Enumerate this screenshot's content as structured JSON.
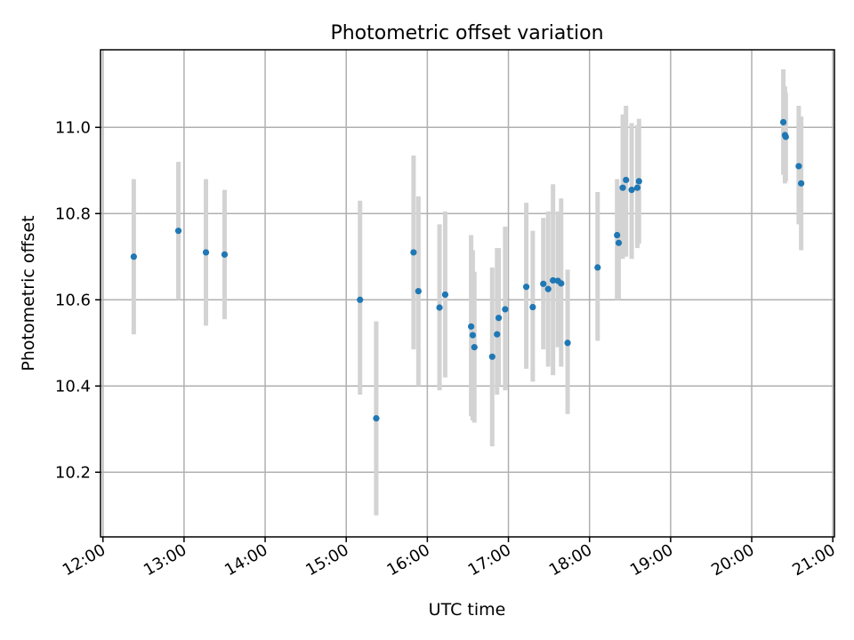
{
  "chart_data": {
    "type": "scatter",
    "title": "Photometric offset variation",
    "xlabel": "UTC time",
    "ylabel": "Photometric offset",
    "x_unit": "hours UTC",
    "xlim": [
      11.97,
      21.02
    ],
    "ylim": [
      10.05,
      11.18
    ],
    "xticks": [
      {
        "value": 12,
        "label": "12:00"
      },
      {
        "value": 13,
        "label": "13:00"
      },
      {
        "value": 14,
        "label": "14:00"
      },
      {
        "value": 15,
        "label": "15:00"
      },
      {
        "value": 16,
        "label": "16:00"
      },
      {
        "value": 17,
        "label": "17:00"
      },
      {
        "value": 18,
        "label": "18:00"
      },
      {
        "value": 19,
        "label": "19:00"
      },
      {
        "value": 20,
        "label": "20:00"
      },
      {
        "value": 21,
        "label": "21:00"
      }
    ],
    "yticks": [
      {
        "value": 10.2,
        "label": "10.2"
      },
      {
        "value": 10.4,
        "label": "10.4"
      },
      {
        "value": 10.6,
        "label": "10.6"
      },
      {
        "value": 10.8,
        "label": "10.8"
      },
      {
        "value": 11.0,
        "label": "11.0"
      }
    ],
    "grid": true,
    "marker_color": "#1f77b4",
    "errorbar_color": "#d3d3d3",
    "points": [
      {
        "x": 12.38,
        "y": 10.7,
        "ylo": 10.52,
        "yhi": 10.88
      },
      {
        "x": 12.93,
        "y": 10.76,
        "ylo": 10.6,
        "yhi": 10.92
      },
      {
        "x": 13.27,
        "y": 10.71,
        "ylo": 10.54,
        "yhi": 10.88
      },
      {
        "x": 13.5,
        "y": 10.705,
        "ylo": 10.555,
        "yhi": 10.855
      },
      {
        "x": 15.17,
        "y": 10.6,
        "ylo": 10.38,
        "yhi": 10.83
      },
      {
        "x": 15.37,
        "y": 10.325,
        "ylo": 10.1,
        "yhi": 10.55
      },
      {
        "x": 15.83,
        "y": 10.71,
        "ylo": 10.485,
        "yhi": 10.935
      },
      {
        "x": 15.89,
        "y": 10.62,
        "ylo": 10.4,
        "yhi": 10.84
      },
      {
        "x": 16.15,
        "y": 10.582,
        "ylo": 10.39,
        "yhi": 10.775
      },
      {
        "x": 16.22,
        "y": 10.612,
        "ylo": 10.42,
        "yhi": 10.805
      },
      {
        "x": 16.54,
        "y": 10.538,
        "ylo": 10.33,
        "yhi": 10.75
      },
      {
        "x": 16.56,
        "y": 10.518,
        "ylo": 10.32,
        "yhi": 10.715
      },
      {
        "x": 16.58,
        "y": 10.49,
        "ylo": 10.315,
        "yhi": 10.665
      },
      {
        "x": 16.8,
        "y": 10.468,
        "ylo": 10.26,
        "yhi": 10.675
      },
      {
        "x": 16.86,
        "y": 10.52,
        "ylo": 10.38,
        "yhi": 10.72
      },
      {
        "x": 16.88,
        "y": 10.558,
        "ylo": 10.4,
        "yhi": 10.72
      },
      {
        "x": 16.96,
        "y": 10.578,
        "ylo": 10.39,
        "yhi": 10.77
      },
      {
        "x": 17.22,
        "y": 10.63,
        "ylo": 10.44,
        "yhi": 10.825
      },
      {
        "x": 17.3,
        "y": 10.583,
        "ylo": 10.41,
        "yhi": 10.76
      },
      {
        "x": 17.43,
        "y": 10.637,
        "ylo": 10.485,
        "yhi": 10.79
      },
      {
        "x": 17.49,
        "y": 10.625,
        "ylo": 10.445,
        "yhi": 10.805
      },
      {
        "x": 17.55,
        "y": 10.645,
        "ylo": 10.425,
        "yhi": 10.868
      },
      {
        "x": 17.61,
        "y": 10.644,
        "ylo": 10.49,
        "yhi": 10.805
      },
      {
        "x": 17.65,
        "y": 10.638,
        "ylo": 10.445,
        "yhi": 10.835
      },
      {
        "x": 17.73,
        "y": 10.5,
        "ylo": 10.335,
        "yhi": 10.67
      },
      {
        "x": 18.1,
        "y": 10.675,
        "ylo": 10.505,
        "yhi": 10.85
      },
      {
        "x": 18.34,
        "y": 10.75,
        "ylo": 10.6,
        "yhi": 10.88
      },
      {
        "x": 18.36,
        "y": 10.732,
        "ylo": 10.6,
        "yhi": 10.865
      },
      {
        "x": 18.41,
        "y": 10.86,
        "ylo": 10.695,
        "yhi": 11.03
      },
      {
        "x": 18.45,
        "y": 10.878,
        "ylo": 10.7,
        "yhi": 11.05
      },
      {
        "x": 18.52,
        "y": 10.855,
        "ylo": 10.695,
        "yhi": 11.01
      },
      {
        "x": 18.59,
        "y": 10.86,
        "ylo": 10.72,
        "yhi": 11.005
      },
      {
        "x": 18.61,
        "y": 10.875,
        "ylo": 10.73,
        "yhi": 11.02
      },
      {
        "x": 20.39,
        "y": 11.012,
        "ylo": 10.89,
        "yhi": 11.135
      },
      {
        "x": 20.41,
        "y": 10.982,
        "ylo": 10.87,
        "yhi": 11.095
      },
      {
        "x": 20.42,
        "y": 10.978,
        "ylo": 10.875,
        "yhi": 11.08
      },
      {
        "x": 20.58,
        "y": 10.91,
        "ylo": 10.775,
        "yhi": 11.05
      },
      {
        "x": 20.61,
        "y": 10.87,
        "ylo": 10.715,
        "yhi": 11.025
      }
    ]
  }
}
